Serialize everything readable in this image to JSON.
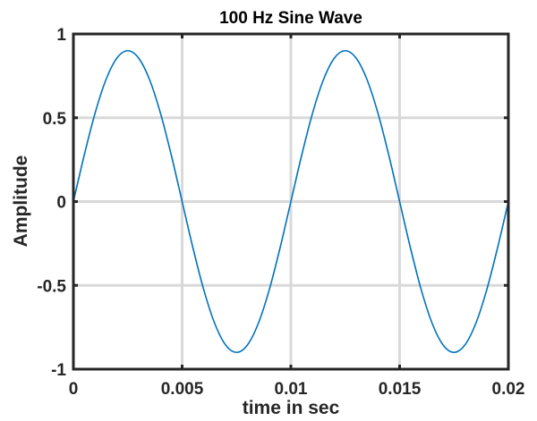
{
  "chart_data": {
    "type": "line",
    "title": "100 Hz Sine Wave",
    "xlabel": "time in sec",
    "ylabel": "Amplitude",
    "xlim": [
      0,
      0.02
    ],
    "ylim": [
      -1,
      1
    ],
    "grid": true,
    "xticks": [
      0,
      0.005,
      0.01,
      0.015,
      0.02
    ],
    "xtick_labels": [
      "0",
      "0.005",
      "0.01",
      "0.015",
      "0.02"
    ],
    "yticks": [
      -1,
      -0.5,
      0,
      0.5,
      1
    ],
    "ytick_labels": [
      "-1",
      "-0.5",
      "0",
      "0.5",
      "1"
    ],
    "line_color": "#0072BD",
    "grid_color": "#d9d9d9",
    "axis_color": "#262626",
    "series": [
      {
        "x": [
          0,
          0.0005,
          0.001,
          0.0015,
          0.002,
          0.0025,
          0.003,
          0.0035,
          0.004,
          0.0045,
          0.005,
          0.0055,
          0.006,
          0.0065,
          0.007,
          0.0075,
          0.008,
          0.0085,
          0.009,
          0.0095,
          0.01,
          0.0105,
          0.011,
          0.0115,
          0.012,
          0.0125,
          0.013,
          0.0135,
          0.014,
          0.0145,
          0.015,
          0.0155,
          0.016,
          0.0165,
          0.017,
          0.0175,
          0.018,
          0.0185,
          0.019,
          0.0195,
          0.02
        ],
        "y": [
          0,
          0.278,
          0.529,
          0.728,
          0.856,
          0.9,
          0.856,
          0.728,
          0.529,
          0.278,
          0,
          -0.278,
          -0.529,
          -0.728,
          -0.856,
          -0.9,
          -0.856,
          -0.728,
          -0.529,
          -0.278,
          0,
          0.278,
          0.529,
          0.728,
          0.856,
          0.9,
          0.856,
          0.728,
          0.529,
          0.278,
          0,
          -0.278,
          -0.529,
          -0.728,
          -0.856,
          -0.9,
          -0.856,
          -0.728,
          -0.529,
          -0.278,
          0
        ]
      }
    ]
  }
}
